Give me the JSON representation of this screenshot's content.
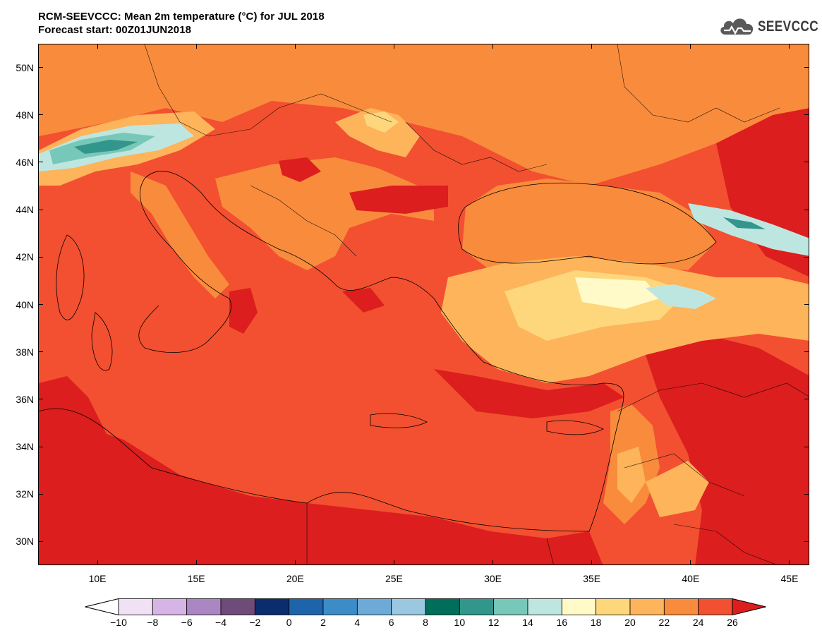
{
  "title": {
    "line1": "RCM-SEEVCCC: Mean 2m temperature (°C) for JUL 2018",
    "line2": "Forecast start: 00Z01JUN2018"
  },
  "logo": {
    "text": "SEEVCCC",
    "icon": "cloud-icon"
  },
  "map": {
    "lat_range": [
      29,
      51
    ],
    "lon_range": [
      7,
      46
    ],
    "lat_ticks": [
      {
        "value": 30,
        "label": "30N"
      },
      {
        "value": 32,
        "label": "32N"
      },
      {
        "value": 34,
        "label": "34N"
      },
      {
        "value": 36,
        "label": "36N"
      },
      {
        "value": 38,
        "label": "38N"
      },
      {
        "value": 40,
        "label": "40N"
      },
      {
        "value": 42,
        "label": "42N"
      },
      {
        "value": 44,
        "label": "44N"
      },
      {
        "value": 46,
        "label": "46N"
      },
      {
        "value": 48,
        "label": "48N"
      },
      {
        "value": 50,
        "label": "50N"
      }
    ],
    "lon_ticks": [
      {
        "value": 10,
        "label": "10E"
      },
      {
        "value": 15,
        "label": "15E"
      },
      {
        "value": 20,
        "label": "20E"
      },
      {
        "value": 25,
        "label": "25E"
      },
      {
        "value": 30,
        "label": "30E"
      },
      {
        "value": 35,
        "label": "35E"
      },
      {
        "value": 40,
        "label": "40E"
      },
      {
        "value": 45,
        "label": "45E"
      }
    ]
  },
  "colorbar": {
    "levels": [
      "-10",
      "-8",
      "-6",
      "-4",
      "-2",
      "0",
      "2",
      "4",
      "6",
      "8",
      "10",
      "12",
      "14",
      "16",
      "18",
      "20",
      "22",
      "24",
      "26"
    ],
    "low_extend_color": "#ffffff",
    "high_extend_color": "#dc1e1e",
    "colors": [
      "#f0e1f5",
      "#d7b4e6",
      "#aa87c3",
      "#6e4b78",
      "#0a2d6e",
      "#1e64aa",
      "#3c8cc8",
      "#6eaad7",
      "#9bc8e1",
      "#006e5a",
      "#32968c",
      "#78c8b9",
      "#bee6e1",
      "#fffac8",
      "#fed77d",
      "#fdb45a",
      "#f98c3c",
      "#f25030"
    ]
  },
  "palette": {
    "t26plus": "#dc1e1e",
    "t24": "#f25030",
    "t22": "#f98c3c",
    "t20": "#fdb45a",
    "t18": "#fed77d",
    "t16": "#fffac8",
    "t14": "#bee6e1",
    "t12": "#78c8b9",
    "t10": "#32968c",
    "t8": "#006e5a"
  }
}
